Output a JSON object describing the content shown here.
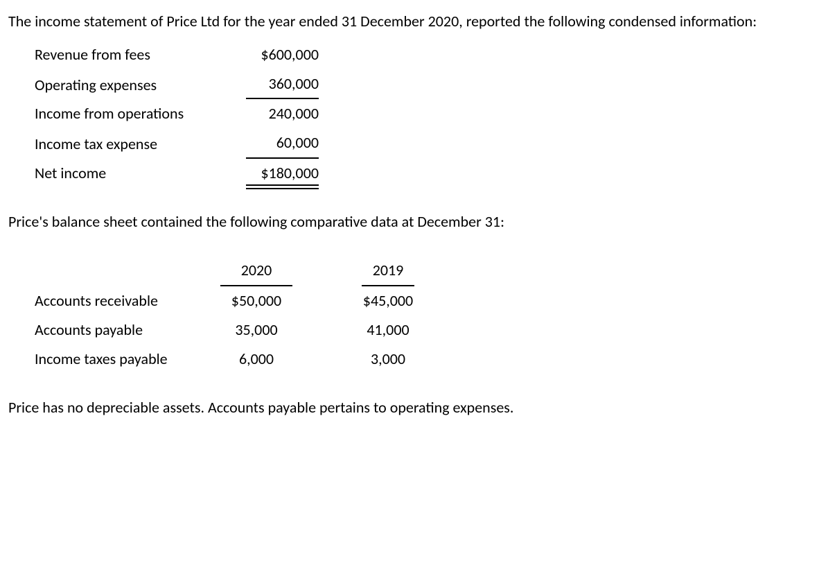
{
  "intro": "The income statement of Price Ltd for the year ended 31 December 2020, reported the following condensed information:",
  "income": {
    "rows": [
      {
        "label": "Revenue from fees",
        "value": "$600,000",
        "style": "plain"
      },
      {
        "label": "Operating expenses",
        "value": "360,000",
        "style": "single"
      },
      {
        "label": "Income from operations",
        "value": "240,000",
        "style": "plain"
      },
      {
        "label": "Income tax expense",
        "value": "60,000",
        "style": "single"
      },
      {
        "label": "Net income",
        "value": "$180,000",
        "style": "double"
      }
    ]
  },
  "balance_intro": "Price's balance sheet contained the following comparative data at December 31:",
  "balance": {
    "headers": [
      "2020",
      "2019"
    ],
    "rows": [
      {
        "label": "Accounts receivable",
        "col2020": "$50,000",
        "col2019": "$45,000"
      },
      {
        "label": "Accounts payable",
        "col2020": "35,000",
        "col2019": "41,000"
      },
      {
        "label": "Income taxes payable",
        "col2020": "6,000",
        "col2019": "3,000"
      }
    ]
  },
  "footnote": "Price has no depreciable assets. Accounts payable pertains to operating expenses."
}
